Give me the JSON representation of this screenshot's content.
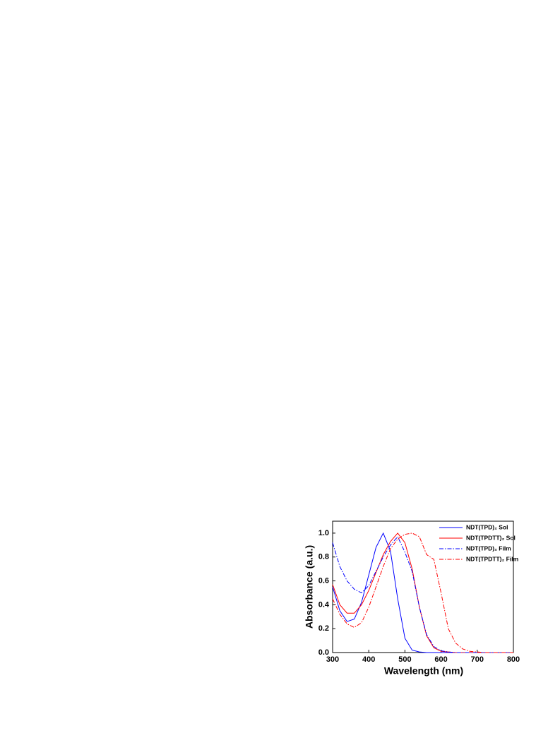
{
  "chart_data": {
    "type": "line",
    "x_label": "Wavelength (nm)",
    "y_label": "Absorbance (a.u.)",
    "x": [
      300,
      320,
      340,
      360,
      380,
      400,
      420,
      440,
      460,
      480,
      500,
      520,
      540,
      560,
      580,
      600,
      620,
      640,
      660,
      680,
      700,
      720,
      740,
      760,
      780,
      800
    ],
    "series": [
      {
        "name": "NDT(TPD)₂ Sol",
        "color": "#0000ff",
        "dash": "solid",
        "values": [
          0.55,
          0.35,
          0.26,
          0.28,
          0.42,
          0.65,
          0.88,
          1.0,
          0.85,
          0.45,
          0.12,
          0.02,
          0.005,
          0,
          0,
          0,
          0,
          0,
          0,
          0,
          0,
          0,
          0,
          0,
          0,
          0
        ]
      },
      {
        "name": "NDT(TPDTT)₂ Sol",
        "color": "#ff0000",
        "dash": "solid",
        "values": [
          0.57,
          0.4,
          0.33,
          0.33,
          0.4,
          0.52,
          0.67,
          0.82,
          0.93,
          1.0,
          0.92,
          0.7,
          0.38,
          0.14,
          0.04,
          0.01,
          0.005,
          0,
          0,
          0,
          0,
          0,
          0,
          0,
          0,
          0
        ]
      },
      {
        "name": "NDT(TPD)₂ Film",
        "color": "#0000ff",
        "dash": "dashdot",
        "values": [
          0.92,
          0.72,
          0.6,
          0.53,
          0.5,
          0.56,
          0.68,
          0.8,
          0.9,
          0.97,
          0.84,
          0.68,
          0.38,
          0.15,
          0.05,
          0.015,
          0.005,
          0,
          0,
          0,
          0,
          0,
          0,
          0,
          0,
          0
        ]
      },
      {
        "name": "NDT(TPDTT)₂ Film",
        "color": "#ff0000",
        "dash": "dashdot",
        "values": [
          0.45,
          0.32,
          0.24,
          0.21,
          0.25,
          0.38,
          0.55,
          0.72,
          0.87,
          0.95,
          0.99,
          1.0,
          0.97,
          0.82,
          0.78,
          0.5,
          0.2,
          0.08,
          0.03,
          0.01,
          0.005,
          0,
          0,
          0,
          0,
          0
        ]
      }
    ],
    "xlim": [
      300,
      800
    ],
    "xticks": [
      300,
      400,
      500,
      600,
      700,
      800
    ],
    "ylim": [
      0,
      1.1
    ],
    "yticks": [
      {
        "value": 0,
        "label": "0.0"
      },
      {
        "value": 0.2,
        "label": "0.2"
      },
      {
        "value": 0.4,
        "label": "0.4"
      },
      {
        "value": 0.6,
        "label": "0.6"
      },
      {
        "value": 0.8,
        "label": "0.8"
      },
      {
        "value": 1.0,
        "label": "1.0"
      }
    ]
  }
}
